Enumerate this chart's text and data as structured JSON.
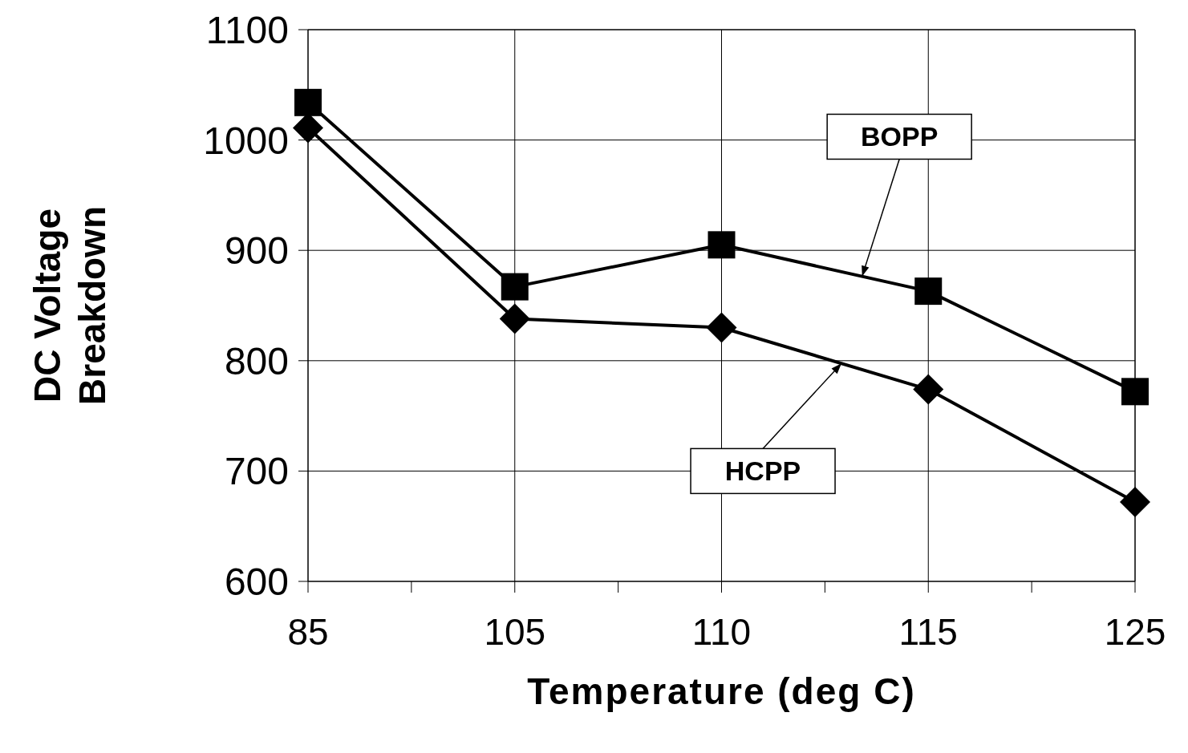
{
  "chart_data": {
    "type": "line",
    "xlabel": "Temperature (deg C)",
    "ylabel": "DC Voltage Breakdown",
    "categories": [
      "85",
      "105",
      "110",
      "115",
      "125"
    ],
    "series": [
      {
        "name": "BOPP",
        "color": "#000000",
        "marker": "square",
        "values": [
          1034,
          867,
          905,
          863,
          772
        ]
      },
      {
        "name": "HCPP",
        "color": "#000000",
        "marker": "diamond",
        "values": [
          1011,
          838,
          830,
          774,
          672
        ]
      }
    ],
    "ylim": [
      600,
      1100
    ],
    "yticks": [
      600,
      700,
      800,
      900,
      1000,
      1100
    ],
    "grid": true,
    "line_style": "solid"
  }
}
